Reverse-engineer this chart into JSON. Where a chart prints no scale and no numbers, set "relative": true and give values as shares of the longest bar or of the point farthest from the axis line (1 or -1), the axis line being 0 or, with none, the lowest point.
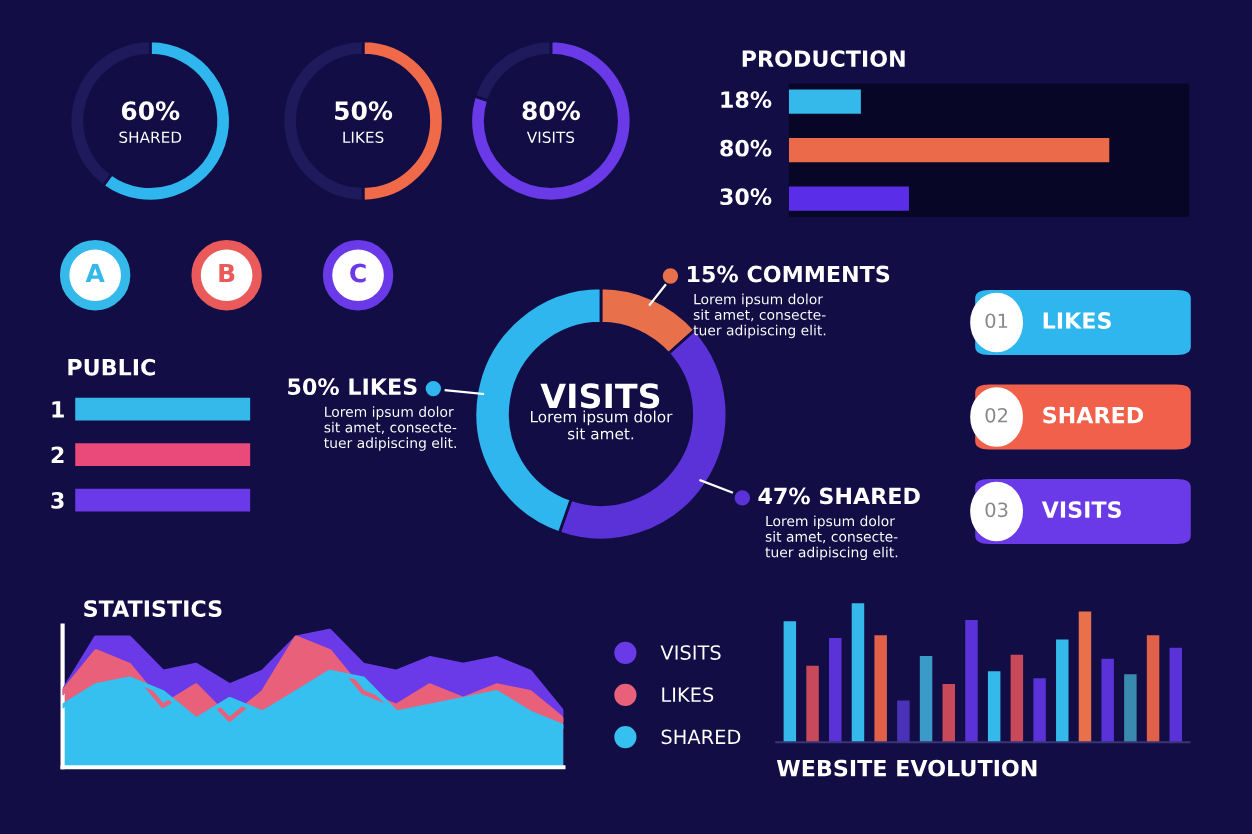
{
  "chart_data": [
    {
      "type": "donut",
      "categories": [
        "SHARED",
        null
      ],
      "values": [
        60,
        40
      ],
      "colors": [
        "#2fb6ee",
        "#1e1a5c"
      ],
      "value_labels": [
        "60%",
        null
      ]
    },
    {
      "type": "donut",
      "categories": [
        "LIKES",
        null
      ],
      "values": [
        50,
        50
      ],
      "colors": [
        "#f06a4a",
        "#1e1a5c"
      ],
      "value_labels": [
        "50%",
        null
      ]
    },
    {
      "type": "donut",
      "categories": [
        "VISITS",
        null
      ],
      "values": [
        80,
        20
      ],
      "colors": [
        "#6a3ae8",
        "#1e1a5c"
      ],
      "value_labels": [
        "80%",
        null
      ]
    },
    {
      "type": "bar",
      "orientation": "horizontal",
      "title": "PRODUCTION",
      "categories": [
        null,
        null,
        null
      ],
      "values": [
        18,
        80,
        30
      ],
      "colors": [
        "#35b8ea",
        "#ea6a4a",
        "#5a2ee8"
      ],
      "value_labels": [
        "18%",
        "80%",
        "30%"
      ],
      "xlim": [
        0,
        100
      ],
      "tick_labels": false
    },
    {
      "type": "other",
      "annotations": [
        "A",
        "B",
        "C"
      ],
      "colors": [
        "#35b8ea",
        "#ea5a5a",
        "#6a3ae8"
      ]
    },
    {
      "type": "bar",
      "orientation": "horizontal",
      "title": "PUBLIC",
      "relative": true,
      "categories": [
        "1",
        "2",
        "3"
      ],
      "values": [
        1,
        1,
        1
      ],
      "colors": [
        "#35b8ea",
        "#ea4a7a",
        "#6a3ae8"
      ],
      "tick_labels": "y"
    },
    {
      "type": "donut",
      "title": "VISITS",
      "categories": [
        "COMMENTS",
        "SHARED",
        "LIKES"
      ],
      "values": [
        15,
        47,
        50
      ],
      "colors": [
        "#e8704a",
        "#5a32d8",
        "#2fb6ee"
      ],
      "value_labels": [
        "15%",
        "47%",
        "50%"
      ],
      "annotations": [
        "Lorem ipsum dolor\nsit amet.",
        "Lorem ipsum dolor\nsit amet, consecte-\ntuer adipiscing elit.",
        "Lorem ipsum dolor\nsit amet, consecte-\ntuer adipiscing elit.",
        "Lorem ipsum dolor\nsit amet, consecte-\ntuer adipiscing elit."
      ]
    },
    {
      "type": "other",
      "annotations": [
        "01",
        "LIKES",
        "02",
        "SHARED",
        "03",
        "VISITS"
      ],
      "colors": [
        "#2fb6ee",
        "#f0604a",
        "#6a3ae8"
      ]
    },
    {
      "type": "area",
      "title": "STATISTICS",
      "relative": true,
      "legend": "right",
      "categories": [
        null,
        null,
        null,
        null,
        null,
        null,
        null,
        null,
        null,
        null,
        null,
        null,
        null,
        null,
        null,
        null
      ],
      "series": [
        {
          "name": "VISITS",
          "color": "#6a3ae8",
          "values": [
            0.55,
            0.95,
            0.95,
            0.7,
            0.75,
            0.6,
            0.7,
            0.95,
            1.0,
            0.75,
            0.7,
            0.8,
            0.75,
            0.8,
            0.7,
            0.4
          ]
        },
        {
          "name": "LIKES",
          "color": "#e8607a",
          "values": [
            0.55,
            0.85,
            0.75,
            0.45,
            0.6,
            0.35,
            0.55,
            0.95,
            0.85,
            0.55,
            0.45,
            0.6,
            0.5,
            0.6,
            0.55,
            0.35
          ]
        },
        {
          "name": "SHARED",
          "color": "#35c0f0",
          "values": [
            0.45,
            0.6,
            0.65,
            0.55,
            0.35,
            0.5,
            0.4,
            0.55,
            0.7,
            0.65,
            0.4,
            0.45,
            0.5,
            0.55,
            0.4,
            0.3
          ]
        }
      ]
    },
    {
      "type": "bar",
      "title": "WEBSITE EVOLUTION",
      "relative": true,
      "categories": [
        null,
        null,
        null,
        null,
        null,
        null,
        null,
        null,
        null,
        null,
        null,
        null,
        null,
        null,
        null,
        null,
        null,
        null
      ],
      "values": [
        0.87,
        0.55,
        0.75,
        1.0,
        0.77,
        0.3,
        0.62,
        0.42,
        0.88,
        0.51,
        0.63,
        0.46,
        0.74,
        0.94,
        0.6,
        0.49,
        0.77,
        0.68
      ],
      "colors": [
        "#35b8ea",
        "#c84a5a",
        "#5a32d8",
        "#35b8ea",
        "#e0604a",
        "#4a32b8",
        "#3a9ac8",
        "#c84a5a",
        "#5a32d8",
        "#35b8ea",
        "#c84a5a",
        "#5a32d8",
        "#35b8ea",
        "#e8704a",
        "#5a32d8",
        "#3a8ab0",
        "#e0604a",
        "#5a32d8"
      ]
    }
  ]
}
